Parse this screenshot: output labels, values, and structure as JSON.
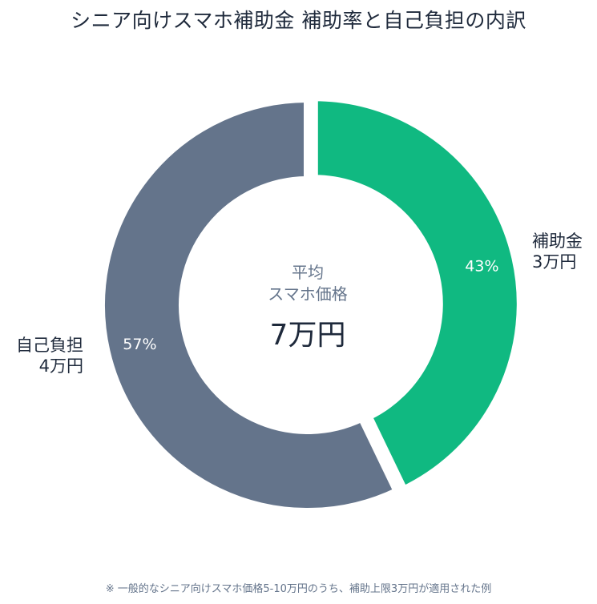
{
  "chart_data": {
    "type": "pie",
    "title": "シニア向けスマホ補助金 補助率と自己負担の内訳",
    "slices": [
      {
        "label": "補助金",
        "amount_label": "3万円",
        "value": 3,
        "percent_label": "43%",
        "color": "#10b981"
      },
      {
        "label": "自己負担",
        "amount_label": "4万円",
        "value": 4,
        "percent_label": "57%",
        "color": "#64748b"
      }
    ],
    "center": {
      "label_line1": "平均",
      "label_line2": "スマホ価格",
      "value": "7万円"
    },
    "footnote": "※ 一般的なシニア向けスマホ価格5-10万円のうち、補助上限3万円が適用された例"
  }
}
